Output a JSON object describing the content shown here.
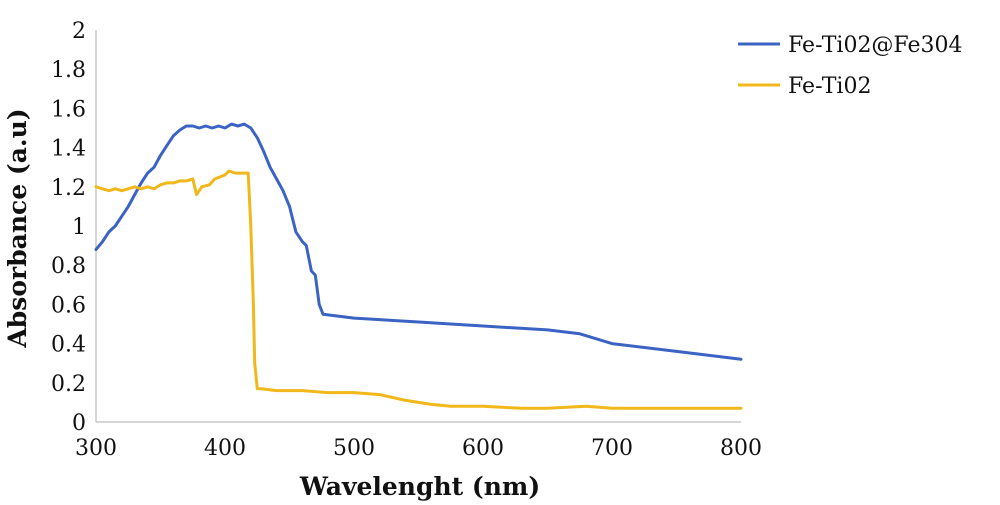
{
  "chart_data": {
    "type": "line",
    "title": "",
    "xlabel": "Wavelenght (nm)",
    "ylabel": "Absorbance (a.u)",
    "xlim": [
      300,
      800
    ],
    "ylim": [
      0,
      2
    ],
    "x_ticks": [
      "300",
      "400",
      "500",
      "600",
      "700",
      "800"
    ],
    "y_ticks": [
      "0",
      "0.2",
      "0.4",
      "0.6",
      "0.8",
      "1",
      "1.2",
      "1.4",
      "1.6",
      "1.8",
      "2"
    ],
    "x_tick_values": [
      300,
      400,
      500,
      600,
      700,
      800
    ],
    "y_tick_values": [
      0,
      0.2,
      0.4,
      0.6,
      0.8,
      1,
      1.2,
      1.4,
      1.6,
      1.8,
      2
    ],
    "grid": false,
    "legend_position": "top-right",
    "series": [
      {
        "name": "Fe-Ti02@Fe304",
        "color": "#3b63c4",
        "points": [
          [
            300,
            0.88
          ],
          [
            305,
            0.92
          ],
          [
            310,
            0.97
          ],
          [
            315,
            1.0
          ],
          [
            320,
            1.05
          ],
          [
            325,
            1.1
          ],
          [
            330,
            1.16
          ],
          [
            335,
            1.22
          ],
          [
            340,
            1.27
          ],
          [
            345,
            1.3
          ],
          [
            350,
            1.36
          ],
          [
            355,
            1.41
          ],
          [
            360,
            1.46
          ],
          [
            365,
            1.49
          ],
          [
            370,
            1.51
          ],
          [
            375,
            1.51
          ],
          [
            380,
            1.5
          ],
          [
            385,
            1.51
          ],
          [
            390,
            1.5
          ],
          [
            395,
            1.51
          ],
          [
            400,
            1.5
          ],
          [
            405,
            1.52
          ],
          [
            410,
            1.51
          ],
          [
            415,
            1.52
          ],
          [
            420,
            1.5
          ],
          [
            425,
            1.45
          ],
          [
            430,
            1.38
          ],
          [
            435,
            1.3
          ],
          [
            440,
            1.24
          ],
          [
            445,
            1.18
          ],
          [
            450,
            1.1
          ],
          [
            455,
            0.97
          ],
          [
            460,
            0.92
          ],
          [
            463,
            0.9
          ],
          [
            467,
            0.77
          ],
          [
            470,
            0.75
          ],
          [
            473,
            0.6
          ],
          [
            476,
            0.55
          ],
          [
            500,
            0.53
          ],
          [
            550,
            0.51
          ],
          [
            600,
            0.49
          ],
          [
            650,
            0.47
          ],
          [
            675,
            0.45
          ],
          [
            700,
            0.4
          ],
          [
            750,
            0.36
          ],
          [
            800,
            0.32
          ]
        ]
      },
      {
        "name": "Fe-Ti02",
        "color": "#f0b81a",
        "points": [
          [
            300,
            1.2
          ],
          [
            305,
            1.19
          ],
          [
            310,
            1.18
          ],
          [
            315,
            1.19
          ],
          [
            320,
            1.18
          ],
          [
            325,
            1.19
          ],
          [
            330,
            1.2
          ],
          [
            335,
            1.19
          ],
          [
            340,
            1.2
          ],
          [
            345,
            1.19
          ],
          [
            350,
            1.21
          ],
          [
            355,
            1.22
          ],
          [
            360,
            1.22
          ],
          [
            365,
            1.23
          ],
          [
            370,
            1.23
          ],
          [
            375,
            1.24
          ],
          [
            378,
            1.16
          ],
          [
            382,
            1.2
          ],
          [
            388,
            1.21
          ],
          [
            392,
            1.24
          ],
          [
            396,
            1.25
          ],
          [
            400,
            1.26
          ],
          [
            403,
            1.28
          ],
          [
            408,
            1.27
          ],
          [
            414,
            1.27
          ],
          [
            418,
            1.27
          ],
          [
            420,
            1.0
          ],
          [
            422,
            0.6
          ],
          [
            423,
            0.3
          ],
          [
            425,
            0.17
          ],
          [
            428,
            0.17
          ],
          [
            440,
            0.16
          ],
          [
            460,
            0.16
          ],
          [
            480,
            0.15
          ],
          [
            500,
            0.15
          ],
          [
            520,
            0.14
          ],
          [
            540,
            0.11
          ],
          [
            560,
            0.09
          ],
          [
            575,
            0.08
          ],
          [
            600,
            0.08
          ],
          [
            630,
            0.07
          ],
          [
            650,
            0.07
          ],
          [
            680,
            0.08
          ],
          [
            700,
            0.07
          ],
          [
            750,
            0.07
          ],
          [
            800,
            0.07
          ]
        ]
      }
    ]
  }
}
